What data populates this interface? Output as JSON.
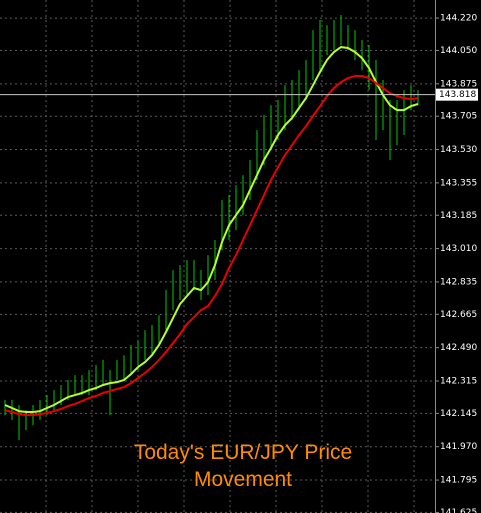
{
  "chart_data": {
    "type": "hlbar",
    "title": [
      "Today's EUR/JPY Price",
      "Movement"
    ],
    "ylim": [
      141.622,
      144.315
    ],
    "yticks": [
      {
        "value": 144.22,
        "label": "144.220"
      },
      {
        "value": 144.05,
        "label": "144.050"
      },
      143.875,
      143.705,
      {
        "value": 143.53,
        "label": "143.530"
      },
      143.355,
      143.185,
      {
        "value": 143.01,
        "label": "143.010"
      },
      142.835,
      142.665,
      {
        "value": 142.49,
        "label": "142.490"
      },
      142.315,
      142.145,
      {
        "value": 141.97,
        "label": "141.970"
      },
      141.795,
      141.625
    ],
    "grid": true,
    "current_price": 143.818,
    "bars": {
      "color": "#00cc00",
      "high": [
        142.215,
        142.215,
        142.189,
        142.162,
        142.189,
        142.215,
        142.241,
        142.267,
        142.294,
        142.32,
        142.346,
        142.346,
        142.372,
        142.399,
        142.425,
        142.372,
        142.425,
        142.451,
        142.504,
        142.53,
        142.582,
        142.609,
        142.661,
        142.792,
        142.897,
        142.924,
        142.95,
        142.95,
        142.897,
        142.976,
        143.055,
        143.265,
        143.291,
        143.343,
        143.396,
        143.475,
        143.632,
        143.711,
        143.763,
        143.79,
        143.868,
        143.895,
        143.947,
        144.0,
        144.157,
        144.21,
        144.183,
        144.21,
        144.236,
        144.183,
        144.157,
        144.105,
        144.078,
        144.0,
        143.895,
        143.79,
        143.79,
        143.842,
        143.868,
        143.842
      ],
      "low": [
        142.136,
        142.11,
        142.005,
        142.057,
        142.083,
        142.11,
        142.136,
        142.162,
        142.189,
        142.215,
        142.241,
        142.241,
        142.241,
        142.267,
        142.294,
        142.136,
        142.32,
        142.32,
        142.346,
        142.372,
        142.425,
        142.451,
        142.504,
        142.582,
        142.687,
        142.74,
        142.766,
        142.792,
        142.74,
        142.766,
        142.845,
        143.002,
        143.055,
        143.107,
        143.186,
        143.265,
        143.37,
        143.448,
        143.527,
        143.58,
        143.632,
        143.685,
        143.737,
        143.79,
        143.895,
        143.947,
        144.026,
        144.052,
        144.078,
        144.052,
        144.0,
        143.947,
        143.842,
        143.58,
        143.632,
        143.475,
        143.553,
        143.606,
        143.737,
        143.763
      ]
    },
    "lines": [
      {
        "color": "#b4ff32",
        "values": [
          142.189,
          142.173,
          142.157,
          142.152,
          142.152,
          142.157,
          142.173,
          142.189,
          142.21,
          142.231,
          142.241,
          142.252,
          142.267,
          142.278,
          142.294,
          142.304,
          142.309,
          142.32,
          142.351,
          142.388,
          142.414,
          142.451,
          142.504,
          142.572,
          142.645,
          142.719,
          142.761,
          142.803,
          142.792,
          142.834,
          142.924,
          143.044,
          143.133,
          143.186,
          143.238,
          143.317,
          143.396,
          143.475,
          143.538,
          143.606,
          143.658,
          143.695,
          143.748,
          143.8,
          143.868,
          143.937,
          144.0,
          144.042,
          144.068,
          144.063,
          144.042,
          144.01,
          143.958,
          143.884,
          143.816,
          143.763,
          143.737,
          143.737,
          143.758,
          143.769
        ]
      },
      {
        "color": "#e80000",
        "values": [
          142.162,
          142.152,
          142.141,
          142.136,
          142.136,
          142.141,
          142.147,
          142.157,
          142.168,
          142.183,
          142.194,
          142.21,
          142.225,
          142.236,
          142.252,
          142.262,
          142.273,
          142.283,
          142.304,
          142.33,
          142.357,
          142.388,
          142.425,
          142.467,
          142.514,
          142.561,
          142.614,
          142.65,
          142.687,
          142.708,
          142.761,
          142.824,
          142.908,
          142.976,
          143.055,
          143.133,
          143.212,
          143.291,
          143.37,
          143.438,
          143.501,
          143.553,
          143.606,
          143.653,
          143.706,
          143.758,
          143.811,
          143.853,
          143.884,
          143.905,
          143.916,
          143.916,
          143.905,
          143.879,
          143.853,
          143.826,
          143.811,
          143.8,
          143.795,
          143.8
        ]
      }
    ]
  }
}
